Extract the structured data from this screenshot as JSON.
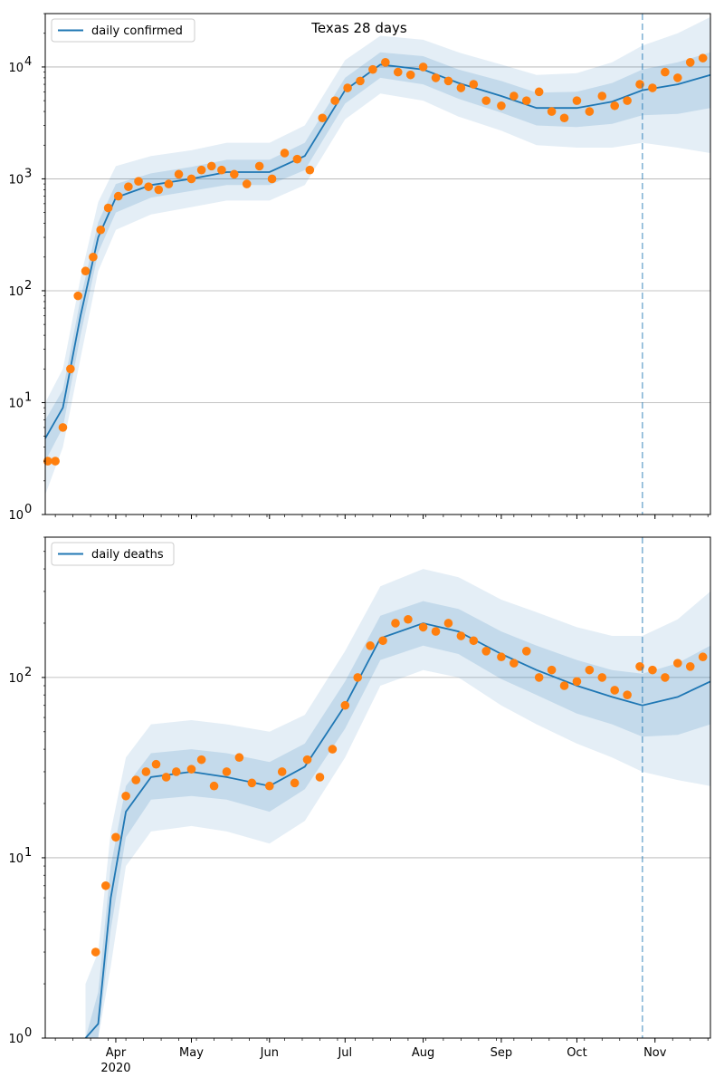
{
  "chart_data": [
    {
      "type": "line",
      "title": "Texas 28 days",
      "legend": {
        "label": "daily confirmed",
        "placement": "top-left"
      },
      "yscale": "log",
      "ylim": [
        1,
        30000
      ],
      "xlim": [
        "2020-03-04",
        "2020-11-23"
      ],
      "grid": "y-major",
      "y_ticks": [
        {
          "value": 1,
          "base": "10",
          "exp": "0"
        },
        {
          "value": 10,
          "base": "10",
          "exp": "1"
        },
        {
          "value": 100,
          "base": "10",
          "exp": "2"
        },
        {
          "value": 1000,
          "base": "10",
          "exp": "3"
        },
        {
          "value": 10000,
          "base": "10",
          "exp": "4"
        }
      ],
      "forecast_start": "2020-10-27",
      "series_color": "#1f77b4",
      "points_color": "#ff7f0e",
      "x": [
        "2020-03-04",
        "2020-03-11",
        "2020-03-18",
        "2020-03-25",
        "2020-04-01",
        "2020-04-15",
        "2020-05-01",
        "2020-05-15",
        "2020-06-01",
        "2020-06-15",
        "2020-07-01",
        "2020-07-15",
        "2020-08-01",
        "2020-08-15",
        "2020-09-01",
        "2020-09-15",
        "2020-10-01",
        "2020-10-15",
        "2020-10-27",
        "2020-11-10",
        "2020-11-23"
      ],
      "series": [
        {
          "values": [
            4.8,
            9,
            60,
            300,
            680,
            880,
            1000,
            1150,
            1150,
            1600,
            6200,
            10500,
            9500,
            7200,
            5500,
            4300,
            4300,
            4900,
            6200,
            7000,
            8500
          ]
        }
      ],
      "band_inner": {
        "lower": [
          3,
          6,
          40,
          220,
          500,
          680,
          780,
          880,
          880,
          1200,
          4700,
          8000,
          7000,
          5200,
          3900,
          3000,
          2900,
          3100,
          3700,
          3800,
          4300
        ],
        "upper": [
          7,
          13,
          85,
          410,
          900,
          1120,
          1280,
          1480,
          1480,
          2100,
          8000,
          13500,
          12500,
          9500,
          7500,
          5900,
          6000,
          7200,
          9500,
          11000,
          13500
        ]
      },
      "band_outer": {
        "lower": [
          1.5,
          4,
          25,
          150,
          350,
          480,
          560,
          640,
          640,
          880,
          3400,
          5800,
          5000,
          3600,
          2700,
          2000,
          1900,
          1900,
          2100,
          1900,
          1700
        ],
        "upper": [
          10,
          20,
          130,
          620,
          1300,
          1600,
          1800,
          2100,
          2100,
          3000,
          11500,
          19000,
          17500,
          13500,
          10500,
          8500,
          8800,
          11000,
          15500,
          20000,
          28000
        ]
      },
      "scatter": {
        "x": [
          "2020-03-05",
          "2020-03-08",
          "2020-03-11",
          "2020-03-14",
          "2020-03-17",
          "2020-03-20",
          "2020-03-23",
          "2020-03-26",
          "2020-03-29",
          "2020-04-02",
          "2020-04-06",
          "2020-04-10",
          "2020-04-14",
          "2020-04-18",
          "2020-04-22",
          "2020-04-26",
          "2020-05-01",
          "2020-05-05",
          "2020-05-09",
          "2020-05-13",
          "2020-05-18",
          "2020-05-23",
          "2020-05-28",
          "2020-06-02",
          "2020-06-07",
          "2020-06-12",
          "2020-06-17",
          "2020-06-22",
          "2020-06-27",
          "2020-07-02",
          "2020-07-07",
          "2020-07-12",
          "2020-07-17",
          "2020-07-22",
          "2020-07-27",
          "2020-08-01",
          "2020-08-06",
          "2020-08-11",
          "2020-08-16",
          "2020-08-21",
          "2020-08-26",
          "2020-09-01",
          "2020-09-06",
          "2020-09-11",
          "2020-09-16",
          "2020-09-21",
          "2020-09-26",
          "2020-10-01",
          "2020-10-06",
          "2020-10-11",
          "2020-10-16",
          "2020-10-21",
          "2020-10-26",
          "2020-10-31",
          "2020-11-05",
          "2020-11-10",
          "2020-11-15",
          "2020-11-20"
        ],
        "values": [
          3,
          3,
          6,
          20,
          90,
          150,
          200,
          350,
          550,
          700,
          850,
          950,
          850,
          800,
          900,
          1100,
          1000,
          1200,
          1300,
          1200,
          1100,
          900,
          1300,
          1000,
          1700,
          1500,
          1200,
          3500,
          5000,
          6500,
          7500,
          9500,
          11000,
          9000,
          8500,
          10000,
          8000,
          7500,
          6500,
          7000,
          5000,
          4500,
          5500,
          5000,
          6000,
          4000,
          3500,
          5000,
          4000,
          5500,
          4500,
          5000,
          7000,
          6500,
          9000,
          8000,
          11000,
          12000
        ]
      }
    },
    {
      "type": "line",
      "legend": {
        "label": "daily deaths",
        "placement": "top-left"
      },
      "yscale": "log",
      "ylim": [
        1,
        600
      ],
      "xlim": [
        "2020-03-04",
        "2020-11-23"
      ],
      "grid": "y-major",
      "y_ticks": [
        {
          "value": 1,
          "base": "10",
          "exp": "0"
        },
        {
          "value": 10,
          "base": "10",
          "exp": "1"
        },
        {
          "value": 100,
          "base": "10",
          "exp": "2"
        }
      ],
      "forecast_start": "2020-10-27",
      "series_color": "#1f77b4",
      "points_color": "#ff7f0e",
      "x": [
        "2020-03-20",
        "2020-03-25",
        "2020-03-30",
        "2020-04-05",
        "2020-04-15",
        "2020-05-01",
        "2020-05-15",
        "2020-06-01",
        "2020-06-15",
        "2020-07-01",
        "2020-07-15",
        "2020-08-01",
        "2020-08-15",
        "2020-09-01",
        "2020-09-15",
        "2020-10-01",
        "2020-10-15",
        "2020-10-27",
        "2020-11-10",
        "2020-11-23"
      ],
      "series": [
        {
          "values": [
            0.5,
            1.2,
            6,
            18,
            28,
            30,
            28,
            25,
            32,
            70,
            165,
            200,
            180,
            135,
            110,
            90,
            78,
            70,
            78,
            95
          ]
        }
      ],
      "band_inner": {
        "lower": [
          0.3,
          0.8,
          4,
          13,
          21,
          22,
          21,
          18,
          24,
          52,
          125,
          150,
          135,
          98,
          80,
          63,
          55,
          47,
          48,
          55
        ],
        "upper": [
          1,
          1.8,
          9,
          25,
          38,
          40,
          38,
          34,
          43,
          95,
          220,
          265,
          240,
          180,
          150,
          125,
          110,
          105,
          120,
          150
        ]
      },
      "band_outer": {
        "lower": [
          0.2,
          0.5,
          2.5,
          9,
          14,
          15,
          14,
          12,
          16,
          36,
          90,
          110,
          100,
          70,
          55,
          43,
          36,
          30,
          27,
          25
        ],
        "upper": [
          2,
          3,
          14,
          36,
          55,
          58,
          55,
          50,
          62,
          140,
          320,
          400,
          360,
          270,
          230,
          190,
          170,
          170,
          210,
          300
        ]
      },
      "scatter": {
        "x": [
          "2020-03-24",
          "2020-03-28",
          "2020-04-01",
          "2020-04-05",
          "2020-04-09",
          "2020-04-13",
          "2020-04-17",
          "2020-04-21",
          "2020-04-25",
          "2020-05-01",
          "2020-05-05",
          "2020-05-10",
          "2020-05-15",
          "2020-05-20",
          "2020-05-25",
          "2020-06-01",
          "2020-06-06",
          "2020-06-11",
          "2020-06-16",
          "2020-06-21",
          "2020-06-26",
          "2020-07-01",
          "2020-07-06",
          "2020-07-11",
          "2020-07-16",
          "2020-07-21",
          "2020-07-26",
          "2020-08-01",
          "2020-08-06",
          "2020-08-11",
          "2020-08-16",
          "2020-08-21",
          "2020-08-26",
          "2020-09-01",
          "2020-09-06",
          "2020-09-11",
          "2020-09-16",
          "2020-09-21",
          "2020-09-26",
          "2020-10-01",
          "2020-10-06",
          "2020-10-11",
          "2020-10-16",
          "2020-10-21",
          "2020-10-26",
          "2020-10-31",
          "2020-11-05",
          "2020-11-10",
          "2020-11-15",
          "2020-11-20"
        ],
        "values": [
          3,
          7,
          13,
          22,
          27,
          30,
          33,
          28,
          30,
          31,
          35,
          25,
          30,
          36,
          26,
          25,
          30,
          26,
          35,
          28,
          40,
          70,
          100,
          150,
          160,
          200,
          210,
          190,
          180,
          200,
          170,
          160,
          140,
          130,
          120,
          140,
          100,
          110,
          90,
          95,
          110,
          100,
          85,
          80,
          115,
          110,
          100,
          120,
          115,
          130
        ]
      }
    }
  ]
}
